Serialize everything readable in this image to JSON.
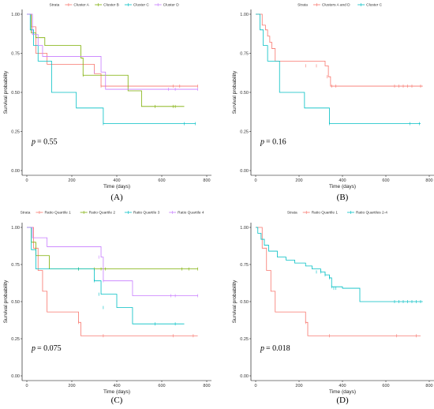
{
  "chart_data": [
    {
      "panel": "(A)",
      "type": "line",
      "step": true,
      "pvalue": "= 0.55",
      "pvalue_symbol": "p",
      "legend_title": "Strata",
      "legend_position": "top",
      "xlabel": "Time (days)",
      "ylabel": "Survival probability",
      "xlim": [
        0,
        800
      ],
      "ylim": [
        0,
        1
      ],
      "xticks": [
        "0",
        "200",
        "400",
        "600",
        "800"
      ],
      "yticks": [
        "0.00",
        "0.25",
        "0.50",
        "0.75",
        "1.00"
      ],
      "series": [
        {
          "name": "Cluster A",
          "color": "#F8766D",
          "x": [
            0,
            20,
            40,
            90,
            300,
            330,
            760
          ],
          "y": [
            1.0,
            0.92,
            0.75,
            0.68,
            0.62,
            0.54,
            0.54
          ],
          "censor_x": [
            330,
            350,
            650,
            680,
            760
          ],
          "censor_y": [
            0.54,
            0.54,
            0.54,
            0.54,
            0.54
          ]
        },
        {
          "name": "Cluster B",
          "color": "#7CAE00",
          "x": [
            0,
            20,
            40,
            80,
            240,
            250,
            330,
            450,
            510,
            700
          ],
          "y": [
            1.0,
            0.88,
            0.85,
            0.8,
            0.72,
            0.61,
            0.61,
            0.51,
            0.41,
            0.41
          ],
          "censor_x": [
            250,
            570,
            650,
            660
          ],
          "censor_y": [
            0.61,
            0.41,
            0.41,
            0.41
          ]
        },
        {
          "name": "Cluster C",
          "color": "#00BFC4",
          "x": [
            0,
            15,
            30,
            50,
            110,
            220,
            340,
            750
          ],
          "y": [
            1.0,
            0.9,
            0.8,
            0.7,
            0.5,
            0.4,
            0.3,
            0.3
          ],
          "censor_x": [
            340,
            700,
            750
          ],
          "censor_y": [
            0.3,
            0.3,
            0.3
          ]
        },
        {
          "name": "Cluster D",
          "color": "#C77CFF",
          "x": [
            0,
            25,
            50,
            70,
            330,
            350,
            760
          ],
          "y": [
            1.0,
            0.87,
            0.8,
            0.73,
            0.63,
            0.52,
            0.52
          ],
          "censor_x": [
            300,
            630,
            660,
            760
          ],
          "censor_y": [
            0.63,
            0.52,
            0.52,
            0.52
          ]
        }
      ]
    },
    {
      "panel": "(B)",
      "type": "line",
      "step": true,
      "pvalue": "= 0.16",
      "pvalue_symbol": "p",
      "legend_title": "Strata",
      "legend_position": "top",
      "xlabel": "Time (days)",
      "ylabel": "Survival probability",
      "xlim": [
        0,
        800
      ],
      "ylim": [
        0,
        1
      ],
      "xticks": [
        "0",
        "200",
        "400",
        "600",
        "800"
      ],
      "yticks": [
        "0.00",
        "0.25",
        "0.50",
        "0.75",
        "1.00"
      ],
      "series": [
        {
          "name": "Clusters A and D",
          "color": "#F8766D",
          "x": [
            0,
            30,
            45,
            55,
            65,
            75,
            90,
            320,
            335,
            345,
            770
          ],
          "y": [
            1.0,
            0.93,
            0.9,
            0.86,
            0.82,
            0.78,
            0.7,
            0.67,
            0.6,
            0.54,
            0.54
          ],
          "censor_x": [
            230,
            280,
            330,
            350,
            370,
            640,
            660,
            680,
            700,
            720,
            760
          ],
          "censor_y": [
            0.67,
            0.67,
            0.6,
            0.54,
            0.54,
            0.54,
            0.54,
            0.54,
            0.54,
            0.54,
            0.54
          ]
        },
        {
          "name": "Cluster C",
          "color": "#00BFC4",
          "x": [
            0,
            20,
            35,
            55,
            110,
            225,
            340,
            760
          ],
          "y": [
            1.0,
            0.9,
            0.8,
            0.7,
            0.5,
            0.4,
            0.3,
            0.3
          ],
          "censor_x": [
            340,
            710,
            755
          ],
          "censor_y": [
            0.3,
            0.3,
            0.3
          ]
        }
      ]
    },
    {
      "panel": "(C)",
      "type": "line",
      "step": true,
      "pvalue": "= 0.075",
      "pvalue_symbol": "p",
      "legend_title": "Strata",
      "legend_position": "top",
      "xlabel": "Time (days)",
      "ylabel": "Survival probability",
      "xlim": [
        0,
        800
      ],
      "ylim": [
        0,
        1
      ],
      "xticks": [
        "0",
        "200",
        "400",
        "600",
        "800"
      ],
      "yticks": [
        "0.00",
        "0.25",
        "0.50",
        "0.75",
        "1.00"
      ],
      "series": [
        {
          "name": "Ratio Quartile 1",
          "color": "#F8766D",
          "x": [
            0,
            30,
            50,
            70,
            90,
            230,
            240,
            760
          ],
          "y": [
            1.0,
            0.86,
            0.71,
            0.57,
            0.43,
            0.36,
            0.27,
            0.27
          ],
          "censor_x": [
            230,
            340,
            650,
            740
          ],
          "censor_y": [
            0.36,
            0.27,
            0.27,
            0.27
          ]
        },
        {
          "name": "Ratio Quartile 2",
          "color": "#7CAE00",
          "x": [
            0,
            20,
            40,
            100,
            760
          ],
          "y": [
            1.0,
            0.9,
            0.81,
            0.72,
            0.72
          ],
          "censor_x": [
            230,
            300,
            330,
            350,
            690,
            720,
            760
          ],
          "censor_y": [
            0.72,
            0.72,
            0.72,
            0.72,
            0.72,
            0.72,
            0.72
          ]
        },
        {
          "name": "Ratio Quartile 3",
          "color": "#00BFC4",
          "x": [
            0,
            20,
            40,
            300,
            330,
            400,
            470,
            700
          ],
          "y": [
            1.0,
            0.85,
            0.72,
            0.64,
            0.55,
            0.46,
            0.35,
            0.35
          ],
          "censor_x": [
            230,
            300,
            320,
            340,
            570,
            660
          ],
          "censor_y": [
            0.72,
            0.64,
            0.55,
            0.46,
            0.35,
            0.35
          ]
        },
        {
          "name": "Ratio Quartile 4",
          "color": "#C77CFF",
          "x": [
            0,
            25,
            90,
            330,
            340,
            470,
            760
          ],
          "y": [
            1.0,
            0.93,
            0.87,
            0.8,
            0.64,
            0.54,
            0.54
          ],
          "censor_x": [
            320,
            340,
            640,
            660,
            760
          ],
          "censor_y": [
            0.8,
            0.64,
            0.54,
            0.54,
            0.54
          ]
        }
      ]
    },
    {
      "panel": "(D)",
      "type": "line",
      "step": true,
      "pvalue": "= 0.018",
      "pvalue_symbol": "p",
      "legend_title": "Strata",
      "legend_position": "top",
      "xlabel": "Time (days)",
      "ylabel": "Survival probability",
      "xlim": [
        0,
        800
      ],
      "ylim": [
        0,
        1
      ],
      "xticks": [
        "0",
        "200",
        "400",
        "600",
        "800"
      ],
      "yticks": [
        "0.00",
        "0.25",
        "0.50",
        "0.75",
        "1.00"
      ],
      "series": [
        {
          "name": "Ratio Quartile 1",
          "color": "#F8766D",
          "x": [
            0,
            30,
            50,
            70,
            90,
            230,
            240,
            760
          ],
          "y": [
            1.0,
            0.86,
            0.71,
            0.57,
            0.43,
            0.36,
            0.27,
            0.27
          ],
          "censor_x": [
            230,
            340,
            650,
            740
          ],
          "censor_y": [
            0.36,
            0.27,
            0.27,
            0.27
          ]
        },
        {
          "name": "Ratio Quartiles 2-4",
          "color": "#00BFC4",
          "x": [
            0,
            10,
            25,
            40,
            60,
            100,
            140,
            180,
            230,
            260,
            300,
            320,
            340,
            350,
            400,
            480,
            770
          ],
          "y": [
            1.0,
            0.96,
            0.92,
            0.88,
            0.84,
            0.8,
            0.78,
            0.76,
            0.74,
            0.72,
            0.7,
            0.68,
            0.66,
            0.6,
            0.59,
            0.5,
            0.5
          ],
          "censor_x": [
            280,
            300,
            320,
            340,
            350,
            360,
            370,
            640,
            660,
            680,
            700,
            720,
            740,
            760
          ],
          "censor_y": [
            0.7,
            0.7,
            0.68,
            0.66,
            0.6,
            0.59,
            0.59,
            0.5,
            0.5,
            0.5,
            0.5,
            0.5,
            0.5,
            0.5
          ]
        }
      ]
    }
  ]
}
